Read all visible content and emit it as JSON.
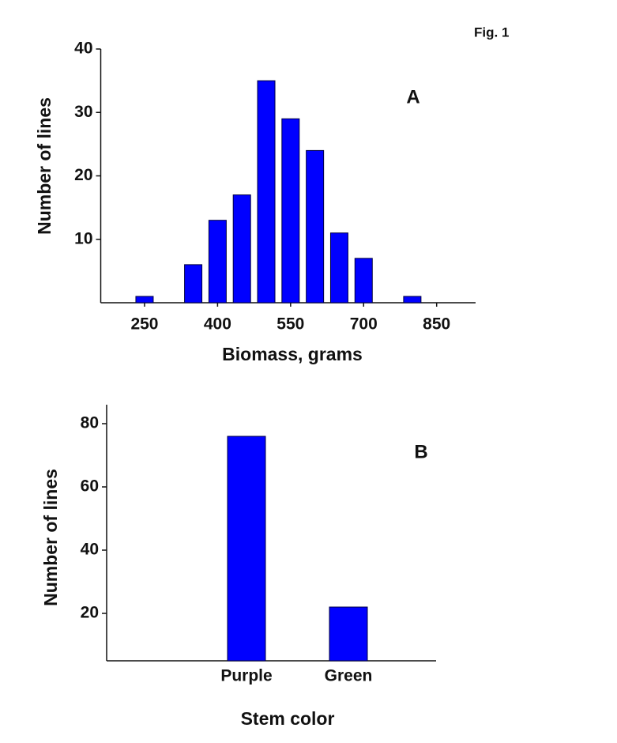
{
  "figure_label": "Fig. 1",
  "chart_data": [
    {
      "type": "bar",
      "annotation": "A",
      "xlabel": "Biomass, grams",
      "ylabel": "Number of lines",
      "x": [
        250,
        350,
        400,
        450,
        500,
        550,
        600,
        650,
        700,
        800
      ],
      "values": [
        1,
        6,
        13,
        17,
        35,
        29,
        24,
        11,
        7,
        1
      ],
      "color": "#0000ff",
      "xlim": [
        160,
        930
      ],
      "xticks": [
        250,
        400,
        550,
        700,
        850
      ],
      "ylim": [
        0,
        40
      ],
      "yticks": [
        10,
        20,
        30,
        40
      ]
    },
    {
      "type": "bar",
      "annotation": "B",
      "xlabel": "Stem color",
      "ylabel": "Number of lines",
      "categories": [
        "Purple",
        "Green"
      ],
      "values": [
        76,
        22
      ],
      "color": "#0000ff",
      "ylim": [
        5,
        86
      ],
      "yticks": [
        20,
        40,
        60,
        80
      ]
    }
  ]
}
